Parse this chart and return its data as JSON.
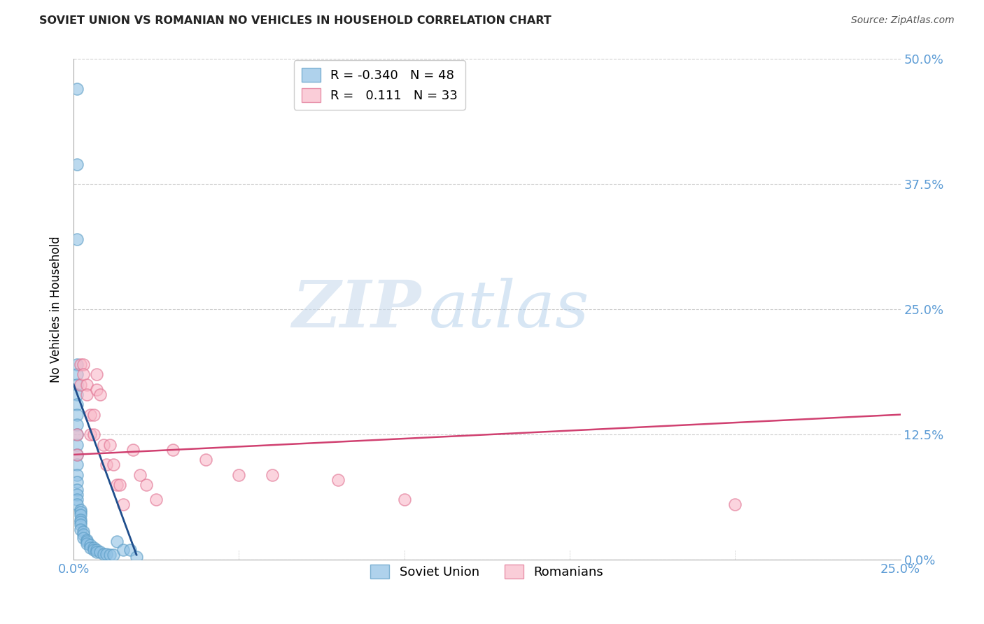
{
  "title": "SOVIET UNION VS ROMANIAN NO VEHICLES IN HOUSEHOLD CORRELATION CHART",
  "source": "Source: ZipAtlas.com",
  "xlim": [
    0.0,
    0.25
  ],
  "ylim": [
    0.0,
    0.5
  ],
  "watermark_zip": "ZIP",
  "watermark_atlas": "atlas",
  "legend_blue_label": "Soviet Union",
  "legend_pink_label": "Romanians",
  "blue_R": -0.34,
  "blue_N": 48,
  "pink_R": 0.111,
  "pink_N": 33,
  "blue_color": "#8ec0e4",
  "blue_edge_color": "#5a9cc5",
  "blue_line_color": "#1f4e8c",
  "pink_color": "#f9b8c8",
  "pink_edge_color": "#e07090",
  "pink_line_color": "#d04070",
  "blue_points_x": [
    0.001,
    0.001,
    0.001,
    0.001,
    0.001,
    0.001,
    0.001,
    0.001,
    0.001,
    0.001,
    0.001,
    0.001,
    0.001,
    0.001,
    0.001,
    0.001,
    0.001,
    0.001,
    0.001,
    0.001,
    0.002,
    0.002,
    0.002,
    0.002,
    0.002,
    0.002,
    0.002,
    0.003,
    0.003,
    0.003,
    0.004,
    0.004,
    0.004,
    0.005,
    0.005,
    0.006,
    0.006,
    0.007,
    0.007,
    0.008,
    0.009,
    0.01,
    0.011,
    0.012,
    0.013,
    0.015,
    0.017,
    0.019
  ],
  "blue_points_y": [
    0.47,
    0.395,
    0.32,
    0.195,
    0.185,
    0.175,
    0.165,
    0.155,
    0.145,
    0.135,
    0.125,
    0.115,
    0.105,
    0.095,
    0.085,
    0.078,
    0.07,
    0.065,
    0.06,
    0.055,
    0.05,
    0.048,
    0.045,
    0.04,
    0.038,
    0.035,
    0.03,
    0.028,
    0.025,
    0.022,
    0.02,
    0.018,
    0.016,
    0.015,
    0.012,
    0.012,
    0.01,
    0.01,
    0.008,
    0.008,
    0.006,
    0.006,
    0.005,
    0.005,
    0.018,
    0.01,
    0.01,
    0.003
  ],
  "pink_points_x": [
    0.001,
    0.001,
    0.002,
    0.002,
    0.003,
    0.003,
    0.004,
    0.004,
    0.005,
    0.005,
    0.006,
    0.006,
    0.007,
    0.007,
    0.008,
    0.009,
    0.01,
    0.011,
    0.012,
    0.013,
    0.014,
    0.015,
    0.018,
    0.02,
    0.022,
    0.025,
    0.03,
    0.04,
    0.05,
    0.06,
    0.08,
    0.1,
    0.2
  ],
  "pink_points_y": [
    0.125,
    0.105,
    0.195,
    0.175,
    0.195,
    0.185,
    0.175,
    0.165,
    0.145,
    0.125,
    0.145,
    0.125,
    0.185,
    0.17,
    0.165,
    0.115,
    0.095,
    0.115,
    0.095,
    0.075,
    0.075,
    0.055,
    0.11,
    0.085,
    0.075,
    0.06,
    0.11,
    0.1,
    0.085,
    0.085,
    0.08,
    0.06,
    0.055
  ],
  "blue_trend_x": [
    0.0,
    0.019
  ],
  "blue_trend_y": [
    0.175,
    0.005
  ],
  "pink_trend_x": [
    0.0,
    0.25
  ],
  "pink_trend_y": [
    0.105,
    0.145
  ],
  "background_color": "#ffffff",
  "grid_color": "#cccccc",
  "ylabel": "No Vehicles in Household",
  "x_tick_vals": [
    0.0,
    0.25
  ],
  "x_tick_labels": [
    "0.0%",
    "25.0%"
  ],
  "y_tick_vals": [
    0.0,
    0.125,
    0.25,
    0.375,
    0.5
  ],
  "y_tick_labels_right": [
    "0.0%",
    "12.5%",
    "25.0%",
    "37.5%",
    "50.0%"
  ]
}
